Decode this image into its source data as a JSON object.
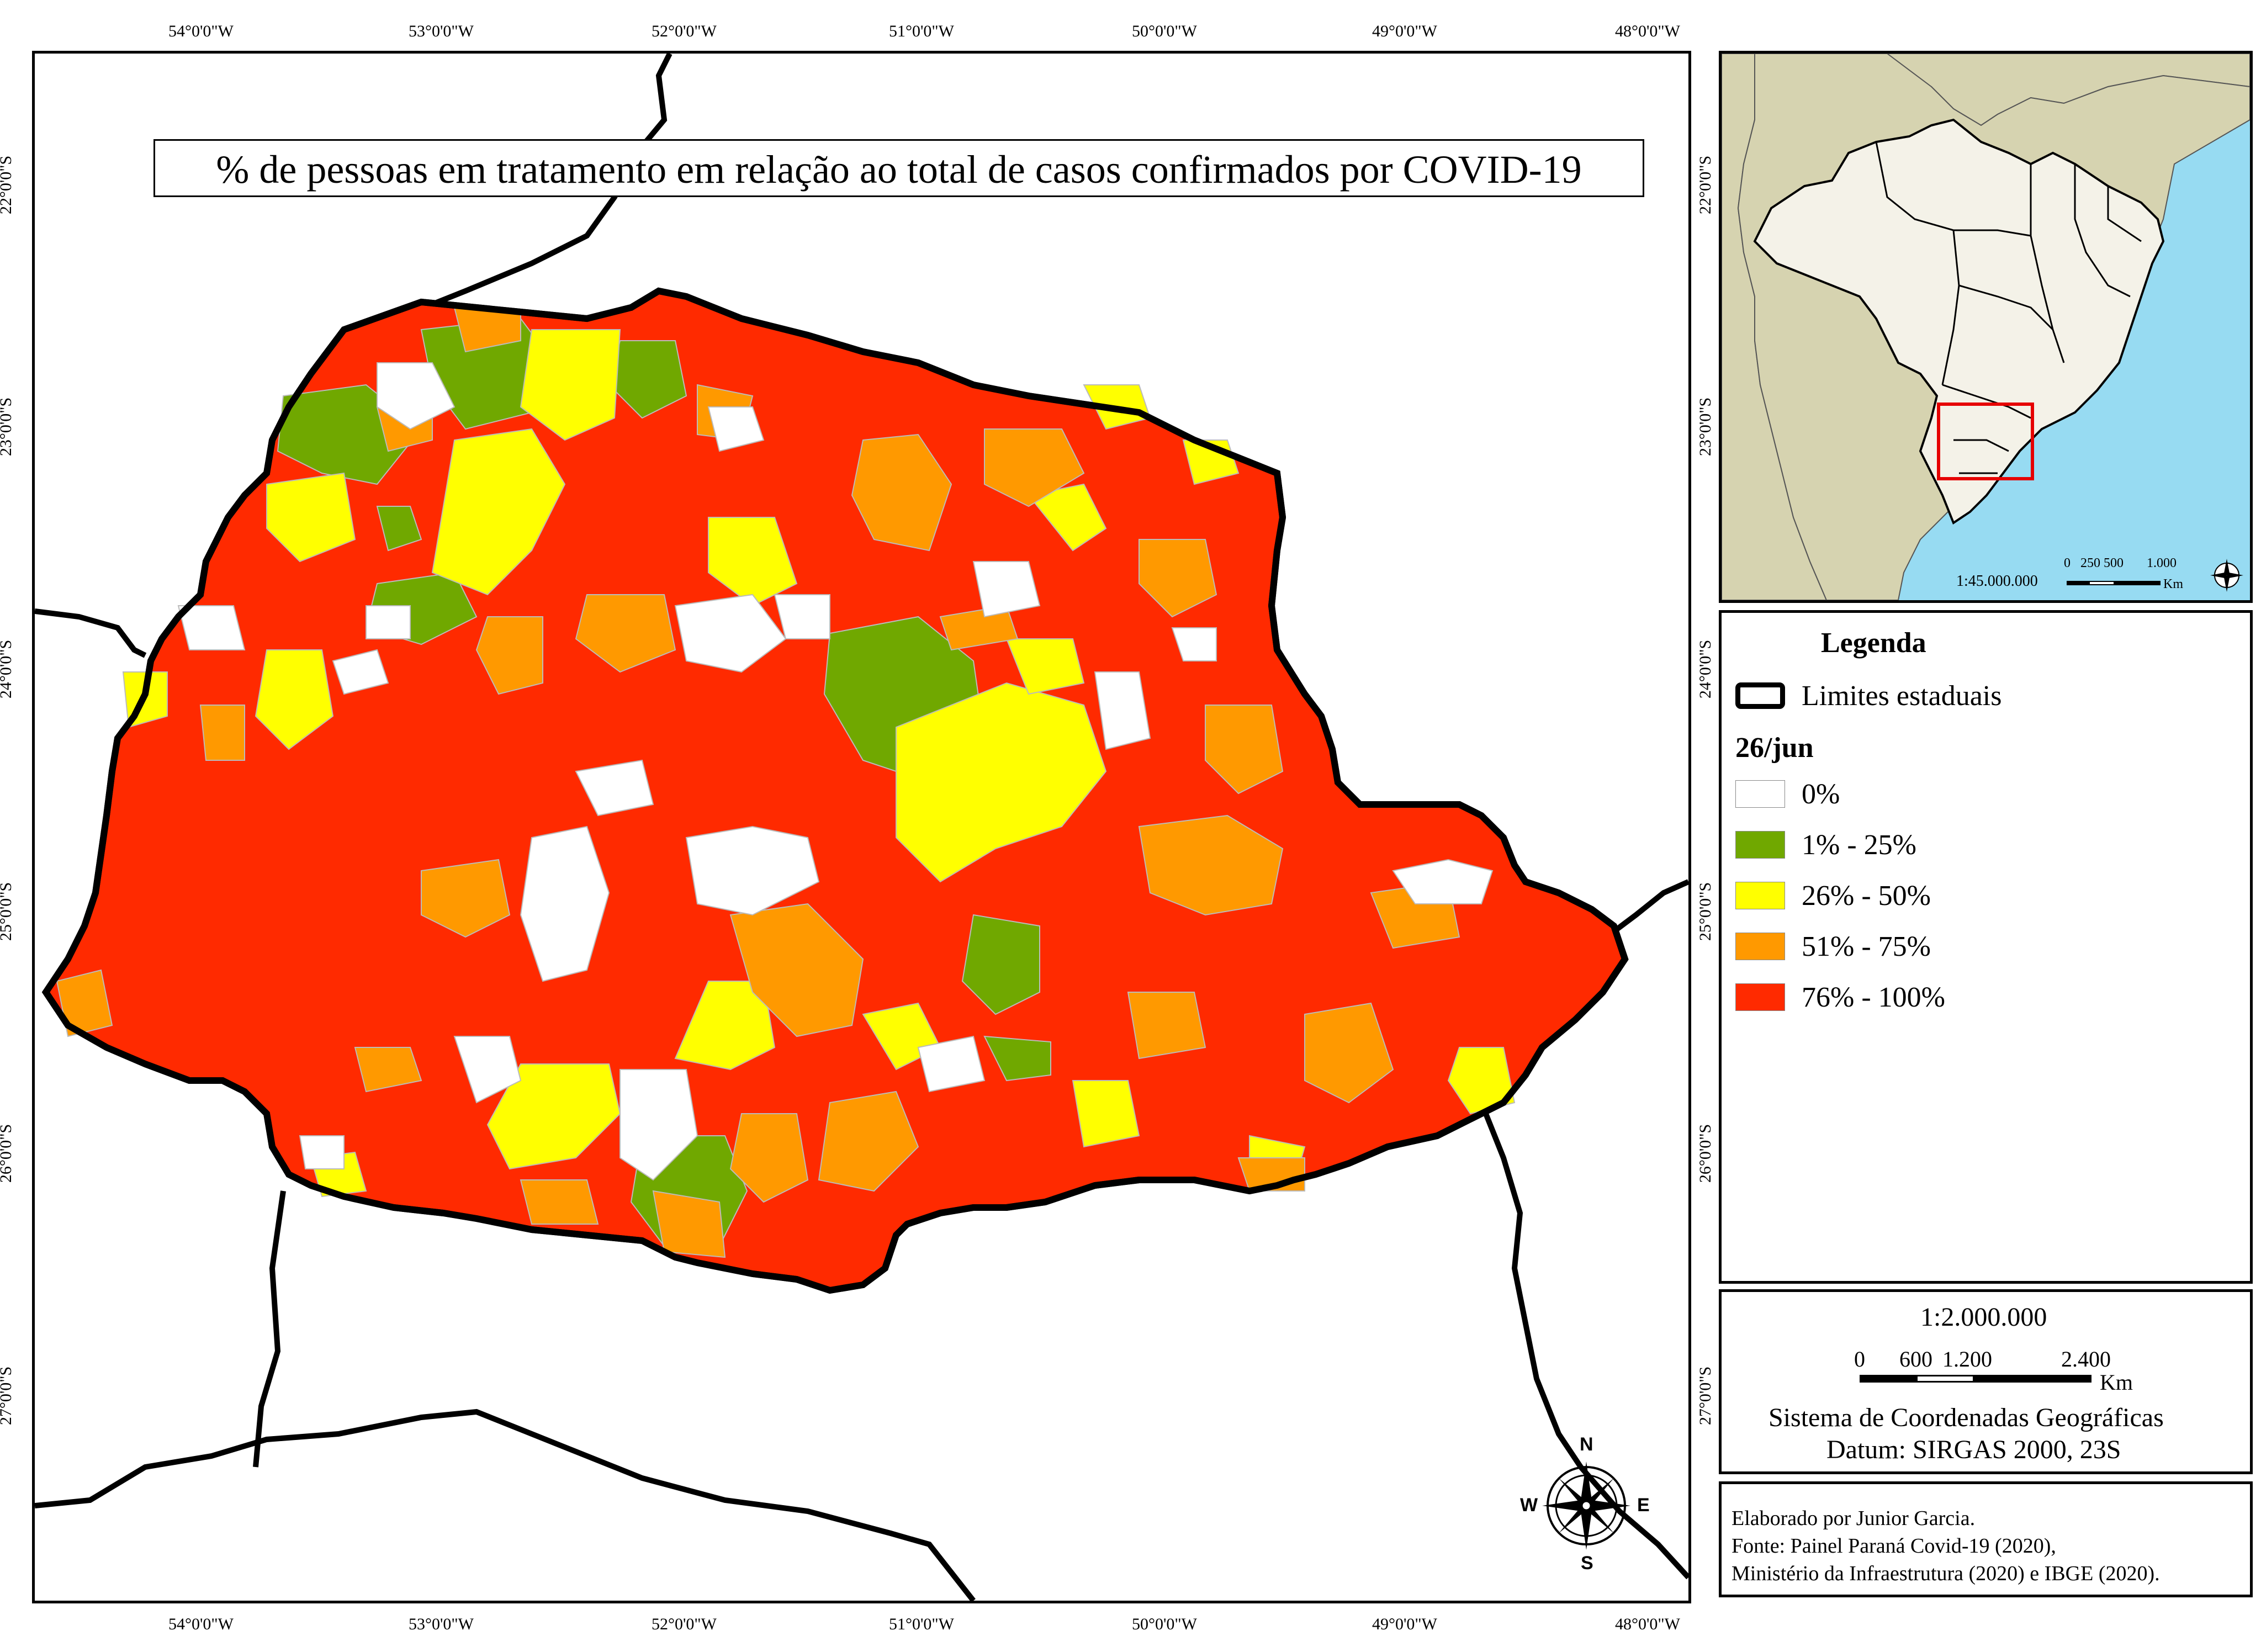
{
  "title": "% de pessoas em tratamento em relação ao total de casos confirmados por COVID-19",
  "longitude_ticks": [
    "54°0'0\"W",
    "53°0'0\"W",
    "52°0'0\"W",
    "51°0'0\"W",
    "50°0'0\"W",
    "49°0'0\"W",
    "48°0'0\"W"
  ],
  "latitude_ticks": [
    "22°0'0\"S",
    "23°0'0\"S",
    "24°0'0\"S",
    "25°0'0\"S",
    "26°0'0\"S",
    "27°0'0\"S"
  ],
  "inset": {
    "scale": "1:45.000.000",
    "bar_labels": [
      "0",
      "250",
      "500",
      "1.000"
    ],
    "unit": "Km"
  },
  "legend": {
    "title": "Legenda",
    "boundary_label": "Limites estaduais",
    "date_label": "26/jun",
    "classes": [
      {
        "label": "0%",
        "color": "#ffffff"
      },
      {
        "label": "1% - 25%",
        "color": "#70a800"
      },
      {
        "label": "26% - 50%",
        "color": "#ffff00"
      },
      {
        "label": "51% - 75%",
        "color": "#ff9900"
      },
      {
        "label": "76% - 100%",
        "color": "#ff2a00"
      }
    ]
  },
  "scale_box": {
    "scale": "1:2.000.000",
    "bar_labels": [
      "0",
      "600",
      "1.200",
      "2.400"
    ],
    "unit": "Km",
    "crs": "Sistema de Coordenadas Geográficas",
    "datum": "Datum: SIRGAS 2000, 23S"
  },
  "credits": [
    "Elaborado por Junior Garcia.",
    "Fonte: Painel Paraná Covid-19 (2020),",
    "Ministério da Infraestrutura (2020) e IBGE (2020)."
  ],
  "compass": {
    "n": "N",
    "s": "S",
    "e": "E",
    "w": "W"
  },
  "colors": {
    "land_inset": "#d6d3b0",
    "brazil_inset": "#f4f2e8",
    "ocean_inset": "#97dbf2",
    "highlight": "#e60000"
  }
}
